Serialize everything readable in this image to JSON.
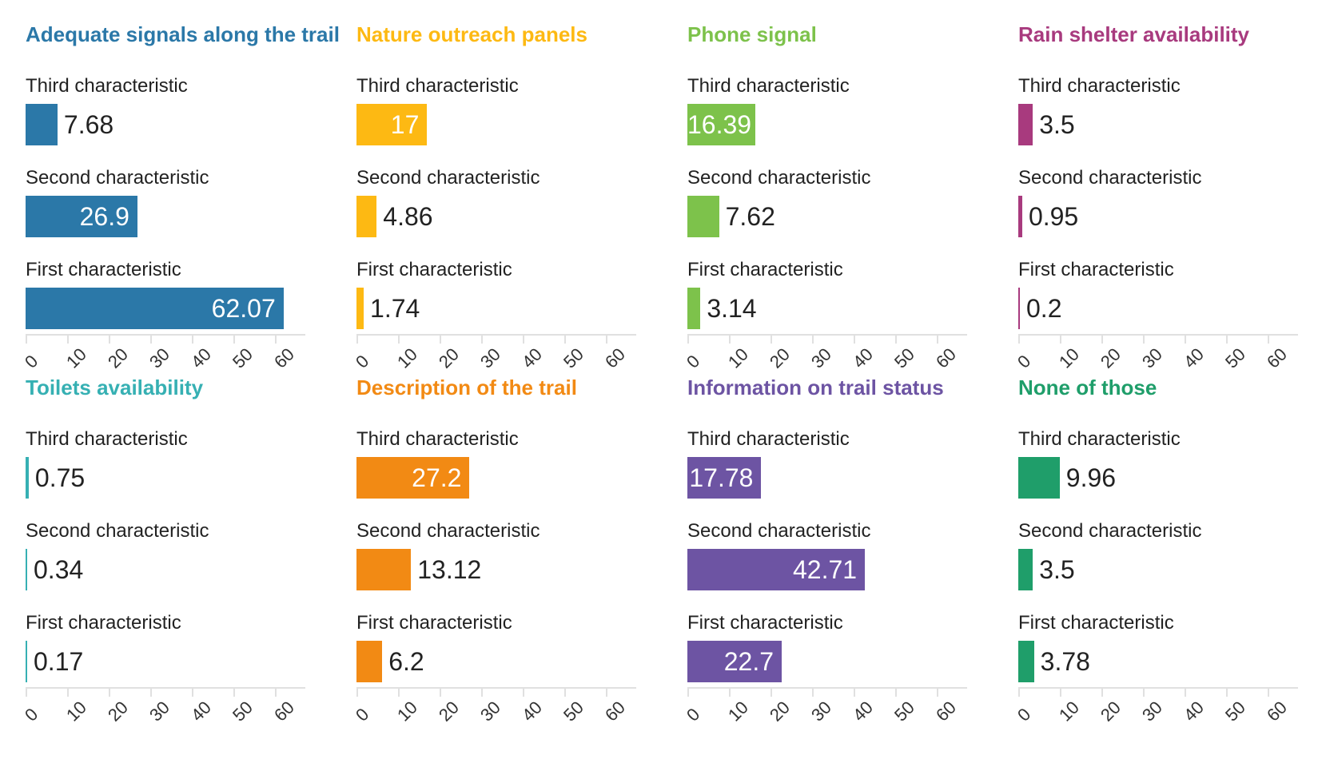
{
  "chart_data": [
    {
      "type": "bar",
      "title": "Adequate signals along the trail",
      "color": "#2b78a8",
      "categories": [
        "Third characteristic",
        "Second characteristic",
        "First characteristic"
      ],
      "values": [
        7.68,
        26.9,
        62.07
      ],
      "value_labels": [
        "7.68",
        "26.9",
        "62.07"
      ],
      "xlim": [
        0,
        65
      ],
      "ticks": [
        "0",
        "10",
        "20",
        "30",
        "40",
        "50",
        "60"
      ]
    },
    {
      "type": "bar",
      "title": "Nature outreach panels",
      "color": "#fdb913",
      "categories": [
        "Third characteristic",
        "Second characteristic",
        "First characteristic"
      ],
      "values": [
        17,
        4.86,
        1.74
      ],
      "value_labels": [
        "17",
        "4.86",
        "1.74"
      ],
      "xlim": [
        0,
        65
      ],
      "ticks": [
        "0",
        "10",
        "20",
        "30",
        "40",
        "50",
        "60"
      ]
    },
    {
      "type": "bar",
      "title": "Phone signal",
      "color": "#7dc24b",
      "categories": [
        "Third characteristic",
        "Second characteristic",
        "First characteristic"
      ],
      "values": [
        16.39,
        7.62,
        3.14
      ],
      "value_labels": [
        "16.39",
        "7.62",
        "3.14"
      ],
      "xlim": [
        0,
        65
      ],
      "ticks": [
        "0",
        "10",
        "20",
        "30",
        "40",
        "50",
        "60"
      ]
    },
    {
      "type": "bar",
      "title": "Rain shelter availability",
      "color": "#a83a7e",
      "categories": [
        "Third characteristic",
        "Second characteristic",
        "First characteristic"
      ],
      "values": [
        3.5,
        0.95,
        0.2
      ],
      "value_labels": [
        "3.5",
        "0.95",
        "0.2"
      ],
      "xlim": [
        0,
        65
      ],
      "ticks": [
        "0",
        "10",
        "20",
        "30",
        "40",
        "50",
        "60"
      ]
    },
    {
      "type": "bar",
      "title": "Toilets availability",
      "color": "#36b0b3",
      "categories": [
        "Third characteristic",
        "Second characteristic",
        "First characteristic"
      ],
      "values": [
        0.75,
        0.34,
        0.17
      ],
      "value_labels": [
        "0.75",
        "0.34",
        "0.17"
      ],
      "xlim": [
        0,
        65
      ],
      "ticks": [
        "0",
        "10",
        "20",
        "30",
        "40",
        "50",
        "60"
      ]
    },
    {
      "type": "bar",
      "title": "Description of the trail",
      "color": "#f28a14",
      "categories": [
        "Third characteristic",
        "Second characteristic",
        "First characteristic"
      ],
      "values": [
        27.2,
        13.12,
        6.2
      ],
      "value_labels": [
        "27.2",
        "13.12",
        "6.2"
      ],
      "xlim": [
        0,
        65
      ],
      "ticks": [
        "0",
        "10",
        "20",
        "30",
        "40",
        "50",
        "60"
      ]
    },
    {
      "type": "bar",
      "title": "Information on trail status",
      "color": "#6d54a3",
      "categories": [
        "Third characteristic",
        "Second characteristic",
        "First characteristic"
      ],
      "values": [
        17.78,
        42.71,
        22.7
      ],
      "value_labels": [
        "17.78",
        "42.71",
        "22.7"
      ],
      "xlim": [
        0,
        65
      ],
      "ticks": [
        "0",
        "10",
        "20",
        "30",
        "40",
        "50",
        "60"
      ]
    },
    {
      "type": "bar",
      "title": "None of those",
      "color": "#1f9e6a",
      "categories": [
        "Third characteristic",
        "Second characteristic",
        "First characteristic"
      ],
      "values": [
        9.96,
        3.5,
        3.78
      ],
      "value_labels": [
        "9.96",
        "3.5",
        "3.78"
      ],
      "xlim": [
        0,
        65
      ],
      "ticks": [
        "0",
        "10",
        "20",
        "30",
        "40",
        "50",
        "60"
      ]
    }
  ]
}
